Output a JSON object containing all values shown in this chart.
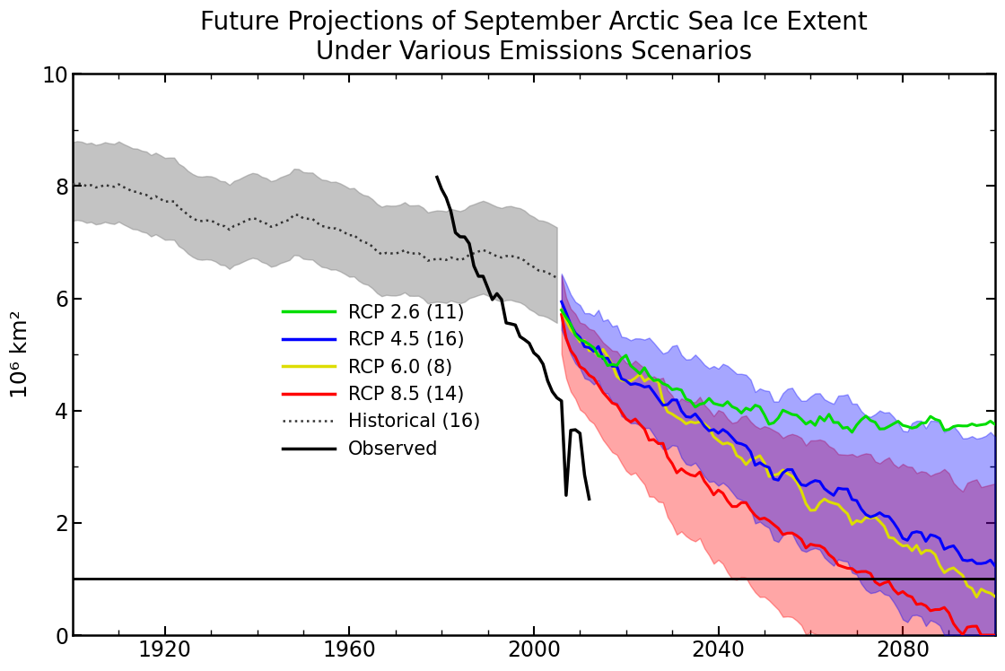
{
  "title": "Future Projections of September Arctic Sea Ice Extent\nUnder Various Emissions Scenarios",
  "ylabel": "10⁶ km²",
  "xlim": [
    1900,
    2100
  ],
  "ylim": [
    0,
    10
  ],
  "yticks": [
    0,
    2,
    4,
    6,
    8,
    10
  ],
  "xticks": [
    1920,
    1960,
    2000,
    2040,
    2080
  ],
  "horizontal_line_y": 1.0,
  "title_fontsize": 20,
  "axis_fontsize": 18,
  "tick_fontsize": 17,
  "legend_fontsize": 15,
  "colors": {
    "rcp26": "#00dd00",
    "rcp45": "#0000ff",
    "rcp60": "#dddd00",
    "rcp85": "#ff0000",
    "historical_shade": "#888888",
    "observed": "#000000"
  },
  "shade_alpha": {
    "historical": 0.5,
    "rcp26": 0.25,
    "rcp45": 0.35,
    "rcp85": 0.35
  },
  "legend_labels": [
    "RCP 2.6 (11)",
    "RCP 4.5 (16)",
    "RCP 6.0 (8)",
    "RCP 8.5 (14)",
    "Historical (16)",
    "Observed"
  ]
}
